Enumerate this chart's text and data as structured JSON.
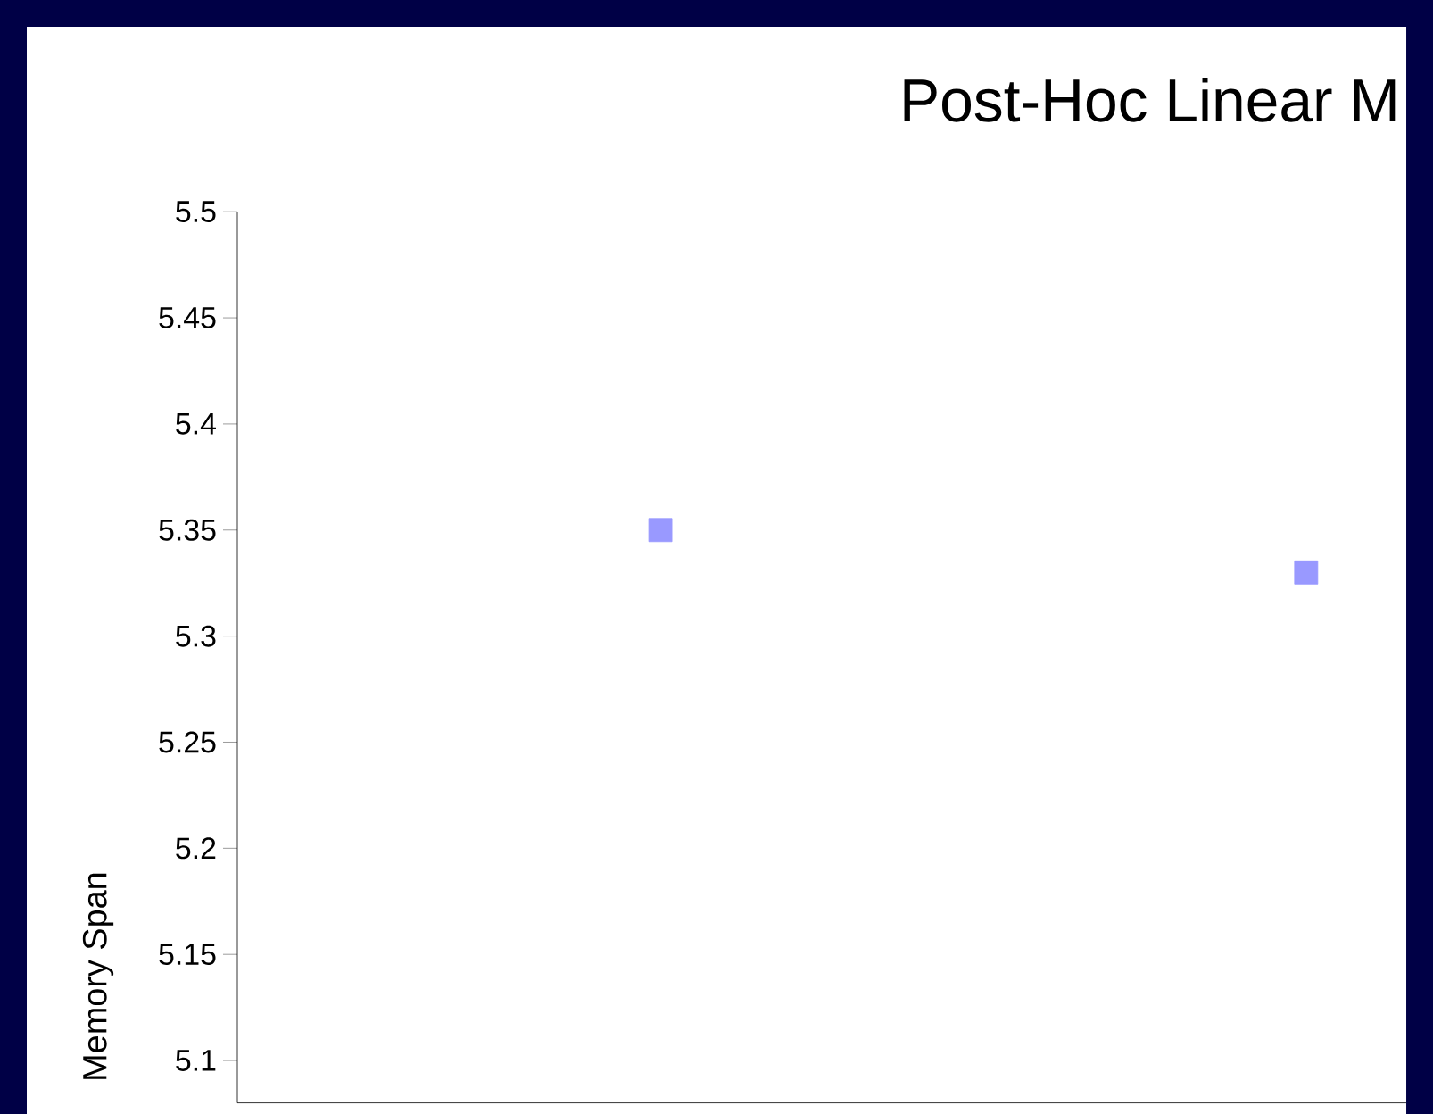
{
  "chart_data": {
    "type": "scatter",
    "title": "Post-Hoc Linear M",
    "ylabel": "Memory Span",
    "categories": [
      null,
      null
    ],
    "series": [
      {
        "color": "#9999ff",
        "values": [
          5.35,
          5.33
        ]
      }
    ],
    "marker": "square",
    "ylim": [
      5.08,
      5.5
    ],
    "yticks": [
      5.1,
      5.15,
      5.2,
      5.25,
      5.3,
      5.35,
      5.4,
      5.45,
      5.5
    ],
    "tick_labels": "y"
  }
}
